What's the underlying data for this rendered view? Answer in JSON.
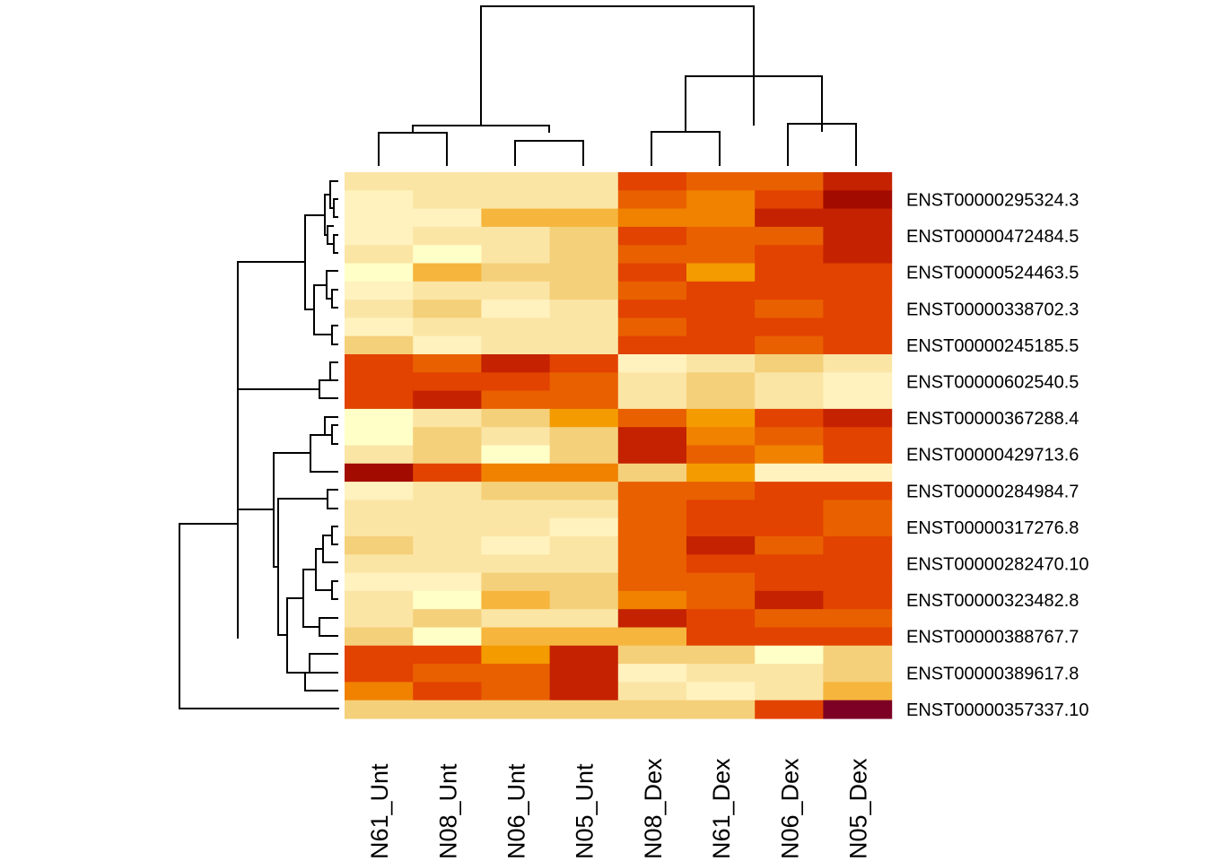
{
  "chart_data": {
    "type": "heatmap",
    "columns": [
      "N61_Unt",
      "N08_Unt",
      "N06_Unt",
      "N05_Unt",
      "N08_Dex",
      "N61_Dex",
      "N06_Dex",
      "N05_Dex"
    ],
    "row_labels": [
      "",
      "ENST00000295324.3",
      "",
      "ENST00000472484.5",
      "",
      "ENST00000524463.5",
      "",
      "ENST00000338702.3",
      "",
      "ENST00000245185.5",
      "",
      "ENST00000602540.5",
      "",
      "ENST00000367288.4",
      "",
      "ENST00000429713.6",
      "",
      "ENST00000284984.7",
      "",
      "ENST00000317276.8",
      "",
      "ENST00000282470.10",
      "",
      "ENST00000323482.8",
      "",
      "ENST00000388767.7",
      "",
      "ENST00000389617.8",
      "",
      "ENST00000357337.10"
    ],
    "color_scale": [
      "#FFFFC8",
      "#FFF2BE",
      "#FBE5A5",
      "#F5D07A",
      "#F6B53D",
      "#F49B00",
      "#F08200",
      "#E96000",
      "#E24300",
      "#C42200",
      "#A20B00",
      "#7D0025"
    ],
    "values": [
      [
        2,
        2,
        2,
        2,
        8,
        7,
        7,
        9
      ],
      [
        1,
        2,
        2,
        2,
        7,
        6,
        8,
        10
      ],
      [
        1,
        1,
        4,
        4,
        6,
        6,
        9,
        9
      ],
      [
        1,
        2,
        2,
        3,
        8,
        7,
        7,
        9
      ],
      [
        2,
        0,
        2,
        3,
        7,
        7,
        8,
        9
      ],
      [
        0,
        4,
        3,
        3,
        8,
        5,
        8,
        8
      ],
      [
        1,
        2,
        2,
        3,
        7,
        8,
        8,
        8
      ],
      [
        2,
        3,
        1,
        2,
        8,
        8,
        7,
        8
      ],
      [
        1,
        2,
        2,
        2,
        7,
        8,
        8,
        8
      ],
      [
        3,
        1,
        2,
        2,
        8,
        8,
        7,
        8
      ],
      [
        8,
        7,
        9,
        8,
        1,
        2,
        3,
        2
      ],
      [
        8,
        8,
        8,
        7,
        2,
        3,
        2,
        1
      ],
      [
        8,
        9,
        7,
        7,
        2,
        3,
        2,
        1
      ],
      [
        0,
        2,
        3,
        5,
        7,
        5,
        8,
        9
      ],
      [
        0,
        3,
        2,
        3,
        9,
        6,
        7,
        8
      ],
      [
        2,
        3,
        0,
        3,
        9,
        7,
        6,
        8
      ],
      [
        10,
        8,
        6,
        6,
        3,
        5,
        1,
        1
      ],
      [
        1,
        2,
        3,
        3,
        7,
        7,
        8,
        8
      ],
      [
        2,
        2,
        2,
        2,
        7,
        8,
        8,
        7
      ],
      [
        2,
        2,
        2,
        1,
        7,
        8,
        8,
        7
      ],
      [
        3,
        2,
        1,
        2,
        7,
        9,
        7,
        8
      ],
      [
        2,
        2,
        2,
        2,
        7,
        8,
        8,
        8
      ],
      [
        1,
        1,
        3,
        3,
        7,
        7,
        8,
        8
      ],
      [
        2,
        0,
        4,
        3,
        6,
        7,
        9,
        8
      ],
      [
        2,
        3,
        2,
        2,
        9,
        8,
        7,
        7
      ],
      [
        3,
        0,
        4,
        4,
        4,
        8,
        8,
        8
      ],
      [
        8,
        8,
        5,
        9,
        3,
        3,
        0,
        3
      ],
      [
        8,
        7,
        7,
        9,
        1,
        2,
        2,
        3
      ],
      [
        6,
        8,
        7,
        9,
        2,
        1,
        2,
        4
      ],
      [
        3,
        3,
        3,
        3,
        3,
        3,
        8,
        11
      ]
    ]
  }
}
